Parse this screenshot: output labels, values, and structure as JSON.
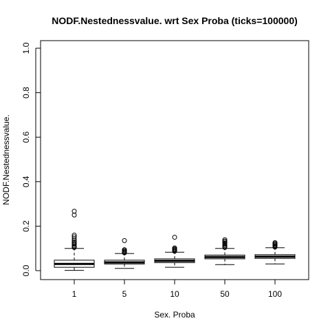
{
  "chart_data": {
    "type": "box",
    "title": "NODF.Nestednessvalue. wrt Sex Proba (ticks=100000)",
    "xlabel": "Sex. Proba",
    "ylabel": "NODF.Nestednessvalue.",
    "categories": [
      "1",
      "5",
      "10",
      "50",
      "100"
    ],
    "ylim": [
      -0.04,
      1.04
    ],
    "yticks": [
      0.0,
      0.2,
      0.4,
      0.6,
      0.8,
      1.0
    ],
    "ytick_labels": [
      "0.0",
      "0.2",
      "0.4",
      "0.6",
      "0.8",
      "1.0"
    ],
    "grid": false,
    "boxes": [
      {
        "category": "1",
        "whisker_low": 0.001,
        "q1": 0.015,
        "median": 0.03,
        "q3": 0.047,
        "whisker_high": 0.1,
        "outliers": [
          0.104,
          0.108,
          0.112,
          0.118,
          0.122,
          0.128,
          0.135,
          0.143,
          0.152,
          0.16,
          0.25,
          0.267
        ]
      },
      {
        "category": "5",
        "whisker_low": 0.01,
        "q1": 0.03,
        "median": 0.037,
        "q3": 0.047,
        "whisker_high": 0.077,
        "outliers": [
          0.08,
          0.083,
          0.086,
          0.09,
          0.094,
          0.135
        ]
      },
      {
        "category": "10",
        "whisker_low": 0.015,
        "q1": 0.036,
        "median": 0.044,
        "q3": 0.053,
        "whisker_high": 0.083,
        "outliers": [
          0.087,
          0.091,
          0.094,
          0.098,
          0.102,
          0.15
        ]
      },
      {
        "category": "50",
        "whisker_low": 0.027,
        "q1": 0.053,
        "median": 0.061,
        "q3": 0.07,
        "whisker_high": 0.1,
        "outliers": [
          0.104,
          0.108,
          0.113,
          0.118,
          0.123,
          0.128,
          0.133,
          0.139
        ]
      },
      {
        "category": "100",
        "whisker_low": 0.03,
        "q1": 0.055,
        "median": 0.063,
        "q3": 0.072,
        "whisker_high": 0.103,
        "outliers": [
          0.106,
          0.11,
          0.114,
          0.118,
          0.122,
          0.126
        ]
      }
    ]
  }
}
